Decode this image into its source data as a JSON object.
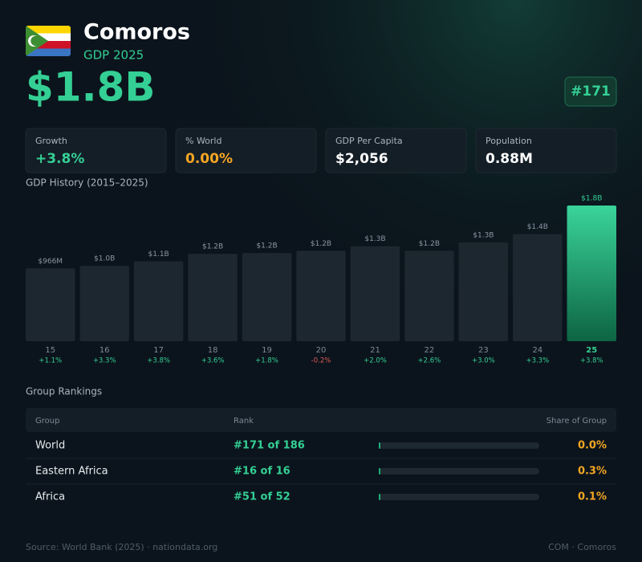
{
  "header": {
    "title": "Comoros",
    "subtitle": "GDP 2025",
    "headline": "$1.8B",
    "rank_badge": "#171"
  },
  "stats": [
    {
      "label": "Growth",
      "value": "+3.8%"
    },
    {
      "label": "% World",
      "value": "0.00%"
    },
    {
      "label": "GDP Per Capita",
      "value": "$2,056"
    },
    {
      "label": "Population",
      "value": "0.88M"
    }
  ],
  "chart_data": {
    "type": "bar",
    "title": "GDP History (2015–2025)",
    "categories": [
      "15",
      "16",
      "17",
      "18",
      "19",
      "20",
      "21",
      "22",
      "23",
      "24",
      "25"
    ],
    "values": [
      0.966,
      1.0,
      1.06,
      1.16,
      1.17,
      1.2,
      1.26,
      1.2,
      1.31,
      1.42,
      1.8
    ],
    "value_labels": [
      "$966M",
      "$1.0B",
      "$1.1B",
      "$1.2B",
      "$1.2B",
      "$1.2B",
      "$1.3B",
      "$1.2B",
      "$1.3B",
      "$1.4B",
      "$1.8B"
    ],
    "growth_labels": [
      "+1.1%",
      "+3.3%",
      "+3.8%",
      "+3.6%",
      "+1.8%",
      "-0.2%",
      "+2.0%",
      "+2.6%",
      "+3.0%",
      "+3.3%",
      "+3.8%"
    ],
    "color": "#1d272f",
    "highlight_color": "#34cf94"
  },
  "rankings": {
    "title": "Group Rankings",
    "columns": [
      "Group",
      "Rank",
      "Share of Group"
    ],
    "rows": [
      {
        "group": "World",
        "rank": "#171 of 186",
        "share": 0.0,
        "share_label": "0.0%"
      },
      {
        "group": "Eastern Africa",
        "rank": "#16 of 16",
        "share": 0.3,
        "share_label": "0.3%"
      },
      {
        "group": "Africa",
        "rank": "#51 of 52",
        "share": 0.1,
        "share_label": "0.1%"
      }
    ]
  },
  "footer": {
    "source": "Source: World Bank (2025) · nationdata.org",
    "code": "COM · Comoros"
  }
}
